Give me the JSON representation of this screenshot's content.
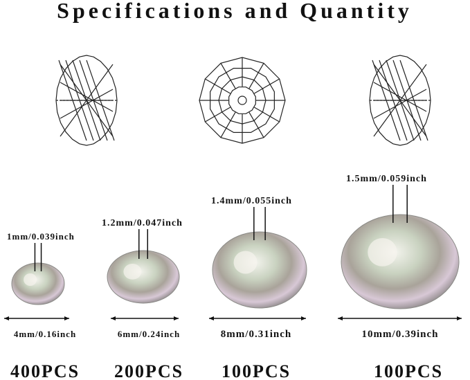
{
  "header": {
    "title": "Specifications and Quantity"
  },
  "beads": [
    {
      "hole": "1mm/0.039inch",
      "size": "4mm/0.16inch",
      "quantity": "400PCS"
    },
    {
      "hole": "1.2mm/0.047inch",
      "size": "6mm/0.24inch",
      "quantity": "200PCS"
    },
    {
      "hole": "1.4mm/0.055inch",
      "size": "8mm/0.31inch",
      "quantity": "100PCS"
    },
    {
      "hole": "1.5mm/0.059inch",
      "size": "10mm/0.39inch",
      "quantity": "100PCS"
    }
  ]
}
